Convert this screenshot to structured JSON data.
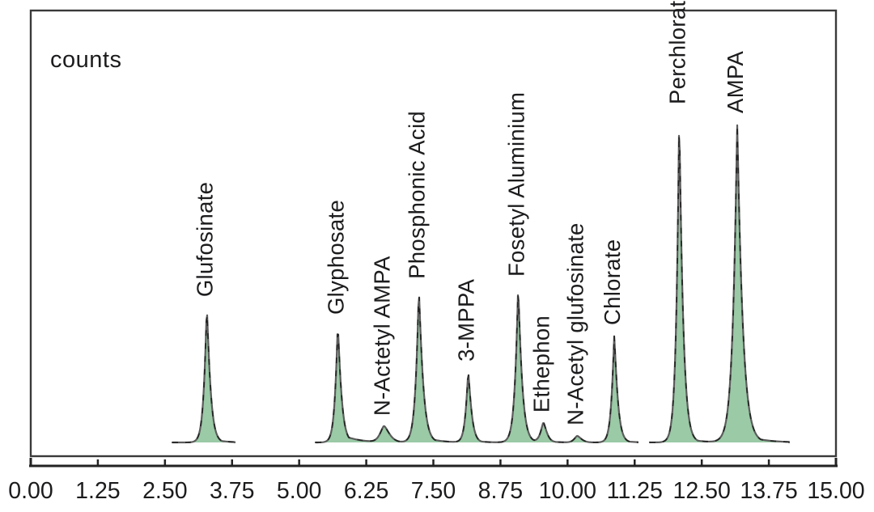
{
  "chart_data": {
    "type": "area",
    "title": "",
    "subtitle": "",
    "xlabel": "",
    "ylabel": "counts",
    "legend": "none",
    "grid": false,
    "x_axis": {
      "min": 0,
      "max": 15,
      "tick_interval": 1.25,
      "tick_labels": [
        "0.00",
        "1.25",
        "2.50",
        "3.75",
        "5.00",
        "6.25",
        "7.50",
        "8.75",
        "10.00",
        "11.25",
        "12.50",
        "13.75",
        "15.00"
      ]
    },
    "y_axis": {
      "units_label": "counts",
      "ticks_visible": false
    },
    "colors": {
      "peak_fill": "#95c7a1",
      "trace_line": "#5c5c5c",
      "trace_dash": "#1a1a1a",
      "text": "#1c1c1e",
      "border": "#3a3a3a",
      "background": "#ffffff"
    },
    "baseline_segments_min": [
      [
        2.64,
        3.8
      ],
      [
        5.31,
        11.31
      ],
      [
        11.54,
        14.12
      ]
    ],
    "peaks": [
      {
        "label": "Glufosinate",
        "rt_min": 3.28,
        "rel_height": 0.412,
        "w_left": 4.0,
        "w_right": 5.0,
        "sharpness": 1.15,
        "tail_amp": 0.05,
        "tail_len": 12
      },
      {
        "label": "Glyphosate",
        "rt_min": 5.72,
        "rel_height": 0.358,
        "w_left": 3.8,
        "w_right": 5.0,
        "sharpness": 1.15,
        "tail_amp": 0.09,
        "tail_len": 18
      },
      {
        "label": "N-Actetyl AMPA",
        "rt_min": 6.58,
        "rel_height": 0.049,
        "w_left": 6.5,
        "w_right": 9.0,
        "sharpness": 1.5,
        "tail_amp": 0,
        "tail_len": 1
      },
      {
        "label": "Phosphonic Acid",
        "rt_min": 7.23,
        "rel_height": 0.467,
        "w_left": 4.2,
        "w_right": 5.6,
        "sharpness": 1.12,
        "tail_amp": 0.06,
        "tail_len": 15
      },
      {
        "label": "3-MPPA",
        "rt_min": 8.15,
        "rel_height": 0.215,
        "w_left": 3.8,
        "w_right": 4.8,
        "sharpness": 1.2,
        "tail_amp": 0.06,
        "tail_len": 10
      },
      {
        "label": "Fosetyl Aluminium",
        "rt_min": 9.08,
        "rel_height": 0.474,
        "w_left": 4.2,
        "w_right": 5.2,
        "sharpness": 1.12,
        "tail_amp": 0.05,
        "tail_len": 13
      },
      {
        "label": "Ethephon",
        "rt_min": 9.55,
        "rel_height": 0.059,
        "w_left": 4.5,
        "w_right": 5.5,
        "sharpness": 1.4,
        "tail_amp": 0.1,
        "tail_len": 8
      },
      {
        "label": "N-Acetyl glufosinate",
        "rt_min": 10.18,
        "rel_height": 0.02,
        "w_left": 5.0,
        "w_right": 7.0,
        "sharpness": 1.5,
        "tail_amp": 0,
        "tail_len": 1
      },
      {
        "label": "Chlorate",
        "rt_min": 10.87,
        "rel_height": 0.326,
        "w_left": 3.8,
        "w_right": 4.8,
        "sharpness": 1.15,
        "tail_amp": 0.05,
        "tail_len": 10
      },
      {
        "label": "Perchlorate",
        "rt_min": 12.08,
        "rel_height": 1.0,
        "w_left": 3.8,
        "w_right": 5.0,
        "sharpness": 1.08,
        "tail_amp": 0.028,
        "tail_len": 14
      },
      {
        "label": "AMPA",
        "rt_min": 13.16,
        "rel_height": 0.973,
        "w_left": 5.5,
        "w_right": 7.0,
        "sharpness": 1.08,
        "tail_amp": 0.04,
        "tail_len": 20
      }
    ]
  }
}
